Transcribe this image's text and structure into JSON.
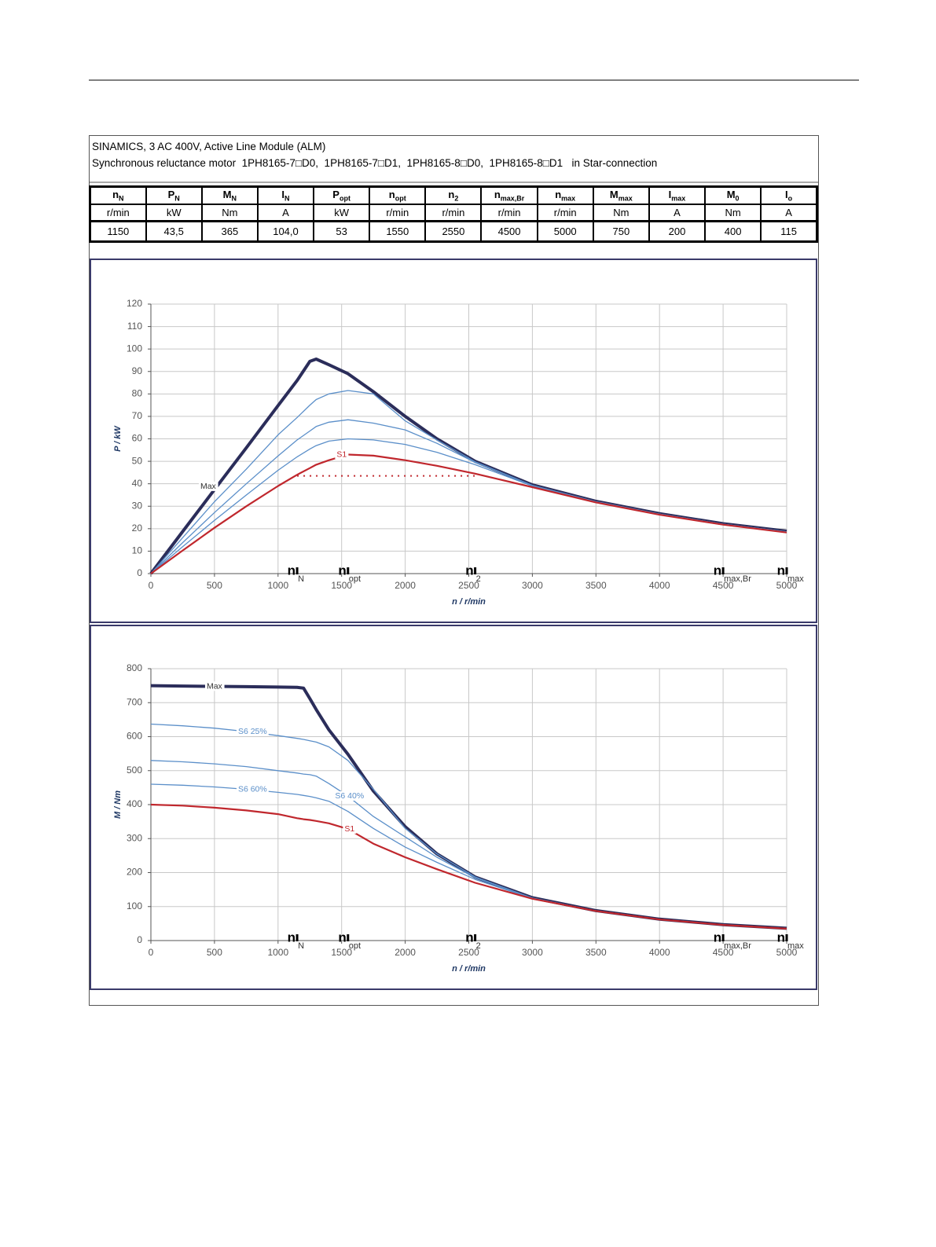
{
  "header": {
    "line1": "SINAMICS, 3 AC 400V, Active Line Module (ALM)",
    "line2": "Synchronous reluctance motor  1PH8165-7□D0,  1PH8165-7□D1,  1PH8165-8□D0,  1PH8165-8□D1   in Star-connection"
  },
  "table": {
    "columns": [
      {
        "symbol": "n",
        "sub": "N",
        "unit": "r/min",
        "value": "1150"
      },
      {
        "symbol": "P",
        "sub": "N",
        "unit": "kW",
        "value": "43,5"
      },
      {
        "symbol": "M",
        "sub": "N",
        "unit": "Nm",
        "value": "365"
      },
      {
        "symbol": "I",
        "sub": "N",
        "unit": "A",
        "value": "104,0"
      },
      {
        "symbol": "P",
        "sub": "opt",
        "unit": "kW",
        "value": "53"
      },
      {
        "symbol": "n",
        "sub": "opt",
        "unit": "r/min",
        "value": "1550"
      },
      {
        "symbol": "n",
        "sub": "2",
        "unit": "r/min",
        "value": "2550"
      },
      {
        "symbol": "n",
        "sub": "max,Br",
        "unit": "r/min",
        "value": "4500"
      },
      {
        "symbol": "n",
        "sub": "max",
        "unit": "r/min",
        "value": "5000"
      },
      {
        "symbol": "M",
        "sub": "max",
        "unit": "Nm",
        "value": "750"
      },
      {
        "symbol": "I",
        "sub": "max",
        "unit": "A",
        "value": "200"
      },
      {
        "symbol": "M",
        "sub": "0",
        "unit": "Nm",
        "value": "400"
      },
      {
        "symbol": "I",
        "sub": "o",
        "unit": "A",
        "value": "115"
      }
    ]
  },
  "chart_data": [
    {
      "type": "line",
      "x_label": "n / r/min",
      "y_label": "P / kW",
      "xlim": [
        0,
        5000
      ],
      "xticks": [
        0,
        500,
        1000,
        1500,
        2000,
        2500,
        3000,
        3500,
        4000,
        4500,
        5000
      ],
      "ylim": [
        0,
        120
      ],
      "yticks": [
        0,
        10,
        20,
        30,
        40,
        50,
        60,
        70,
        80,
        90,
        100,
        110,
        120
      ],
      "grid": true,
      "x": [
        0,
        250,
        500,
        750,
        1000,
        1150,
        1250,
        1300,
        1400,
        1550,
        1750,
        2000,
        2250,
        2550,
        3000,
        3500,
        4000,
        4500,
        5000
      ],
      "series": [
        {
          "name": "Max",
          "color": "#2b2d5a",
          "values": [
            0,
            18.7,
            37.4,
            56,
            74.8,
            86,
            94.5,
            95.5,
            93,
            89,
            81,
            70,
            60,
            50,
            39.5,
            32.2,
            26.7,
            22.2,
            18.9
          ]
        },
        {
          "color": "#5b8fc9",
          "values": [
            0,
            16,
            32,
            46.5,
            61.8,
            69.5,
            75,
            77.5,
            80,
            81.5,
            80,
            68,
            59.5,
            49.8,
            39.3,
            32,
            26.5,
            22,
            18.6
          ]
        },
        {
          "color": "#5b8fc9",
          "values": [
            0,
            13.8,
            27.2,
            40,
            52.4,
            59.5,
            63.5,
            65.5,
            67.4,
            68.5,
            67,
            64,
            58,
            49.5,
            39.3,
            32,
            26.5,
            22,
            18.6
          ]
        },
        {
          "color": "#5b8fc9",
          "values": [
            0,
            12,
            23.7,
            35,
            46,
            52,
            55.5,
            57,
            59,
            60,
            59.5,
            57.5,
            54,
            48.5,
            39,
            32,
            26.5,
            22,
            18.6
          ]
        },
        {
          "name": "S1",
          "color": "#c0272d",
          "values": [
            0,
            10.3,
            20.4,
            30,
            39,
            44,
            47,
            48.5,
            50.5,
            53,
            52.5,
            50.5,
            48,
            44.5,
            38.5,
            31.7,
            26.2,
            21.8,
            18.3
          ]
        }
      ],
      "reference_line": {
        "y": 43.5,
        "x": [
          1150,
          2550
        ],
        "color": "#c0272d"
      },
      "markers": [
        {
          "x": 1150,
          "label": "n",
          "sub": "N"
        },
        {
          "x": 1550,
          "label": "n",
          "sub": "opt"
        },
        {
          "x": 2550,
          "label": "n",
          "sub": "2"
        },
        {
          "x": 4500,
          "label": "n",
          "sub": "max,Br"
        },
        {
          "x": 5000,
          "label": "n",
          "sub": "max"
        }
      ]
    },
    {
      "type": "line",
      "x_label": "n / r/min",
      "y_label": "M / Nm",
      "xlim": [
        0,
        5000
      ],
      "xticks": [
        0,
        500,
        1000,
        1500,
        2000,
        2500,
        3000,
        3500,
        4000,
        4500,
        5000
      ],
      "ylim": [
        0,
        800
      ],
      "yticks": [
        0,
        100,
        200,
        300,
        400,
        500,
        600,
        700,
        800
      ],
      "grid": true,
      "x": [
        0,
        250,
        500,
        750,
        1000,
        1150,
        1200,
        1250,
        1300,
        1400,
        1550,
        1750,
        2000,
        2250,
        2550,
        3000,
        3500,
        4000,
        4500,
        5000
      ],
      "series": [
        {
          "name": "Max",
          "color": "#2b2d5a",
          "values": [
            750,
            749,
            748,
            747,
            746,
            745,
            743,
            712,
            680,
            620,
            548,
            440,
            335,
            255,
            187,
            126,
            88,
            63,
            47,
            36
          ]
        },
        {
          "name": "S6 25%",
          "color": "#5b8fc9",
          "values": [
            637,
            632,
            625,
            615,
            603,
            595,
            592,
            588,
            584,
            570,
            530,
            445,
            330,
            255,
            187,
            125,
            87.5,
            62.5,
            46.5,
            35.5
          ]
        },
        {
          "name": "S6 40%",
          "color": "#5b8fc9",
          "values": [
            530,
            526,
            520,
            512,
            500,
            493,
            490,
            488,
            484,
            462,
            425,
            365,
            305,
            245,
            185,
            125,
            87.5,
            62.5,
            46.5,
            35.5
          ]
        },
        {
          "name": "S6 60%",
          "color": "#5b8fc9",
          "values": [
            460,
            457,
            452,
            445,
            436,
            430,
            427,
            424,
            420,
            410,
            380,
            330,
            275,
            230,
            180,
            124,
            87.5,
            62.5,
            46.5,
            35.5
          ]
        },
        {
          "name": "S1",
          "color": "#c0272d",
          "values": [
            400,
            397,
            391,
            383,
            372,
            360,
            357,
            355,
            352,
            345,
            328,
            285,
            245,
            210,
            170,
            123,
            87,
            62,
            46,
            35
          ]
        }
      ],
      "markers": [
        {
          "x": 1150,
          "label": "n",
          "sub": "N"
        },
        {
          "x": 1550,
          "label": "n",
          "sub": "opt"
        },
        {
          "x": 2550,
          "label": "n",
          "sub": "2"
        },
        {
          "x": 4500,
          "label": "n",
          "sub": "max,Br"
        },
        {
          "x": 5000,
          "label": "n",
          "sub": "max"
        }
      ]
    }
  ]
}
